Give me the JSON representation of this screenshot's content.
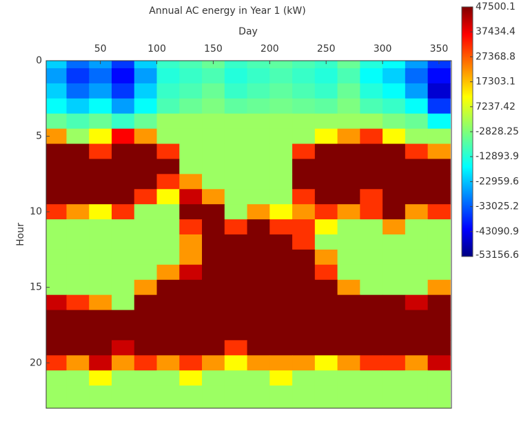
{
  "chart_data": {
    "type": "heatmap",
    "title": "Annual AC energy in Year 1 (kW)",
    "xlabel": "Day",
    "ylabel": "Hour",
    "cmap": "jet",
    "y_inverted": true,
    "x_axis_position": "top",
    "xlim": [
      2,
      361
    ],
    "xticks": [
      50,
      100,
      150,
      200,
      250,
      300,
      350
    ],
    "ylim": [
      0,
      23
    ],
    "yticks": [
      0,
      5,
      10,
      15,
      20
    ],
    "x": [
      10,
      30,
      50,
      70,
      90,
      110,
      130,
      150,
      170,
      190,
      210,
      230,
      250,
      270,
      290,
      310,
      330,
      350
    ],
    "y": [
      0,
      1,
      2,
      3,
      4,
      5,
      6,
      7,
      8,
      9,
      10,
      11,
      12,
      13,
      14,
      15,
      16,
      17,
      18,
      19,
      20,
      21,
      22,
      23
    ],
    "values": [
      [
        -20000,
        -30000,
        -25000,
        -35000,
        -20000,
        -10000,
        -8000,
        -5000,
        -10000,
        -8000,
        -6000,
        -8000,
        -10000,
        -5000,
        -12000,
        -15000,
        -25000,
        -35000
      ],
      [
        -25000,
        -35000,
        -30000,
        -40000,
        -25000,
        -12000,
        -10000,
        -8000,
        -12000,
        -10000,
        -8000,
        -10000,
        -12000,
        -8000,
        -15000,
        -20000,
        -30000,
        -40000
      ],
      [
        -20000,
        -30000,
        -25000,
        -35000,
        -20000,
        -10000,
        -8000,
        -5000,
        -10000,
        -8000,
        -6000,
        -8000,
        -10000,
        -5000,
        -12000,
        -15000,
        -25000,
        -45000
      ],
      [
        -15000,
        -20000,
        -15000,
        -25000,
        -15000,
        -8000,
        -5000,
        -3000,
        -6000,
        -5000,
        -4000,
        -5000,
        -6000,
        -3000,
        -8000,
        -10000,
        -15000,
        -35000
      ],
      [
        -5000,
        -8000,
        -5000,
        -10000,
        -5000,
        0,
        0,
        0,
        0,
        0,
        0,
        0,
        0,
        0,
        0,
        -3000,
        -5000,
        -15000
      ],
      [
        20000,
        0,
        10000,
        35000,
        20000,
        0,
        0,
        0,
        0,
        0,
        0,
        0,
        10000,
        20000,
        30000,
        10000,
        0,
        0
      ],
      [
        47500,
        47500,
        30000,
        47500,
        47500,
        30000,
        0,
        0,
        0,
        0,
        0,
        30000,
        47500,
        47500,
        47500,
        47500,
        30000,
        20000
      ],
      [
        47500,
        47500,
        47500,
        47500,
        47500,
        47500,
        0,
        0,
        0,
        0,
        0,
        47500,
        47500,
        47500,
        47500,
        47500,
        47500,
        47500
      ],
      [
        47500,
        47500,
        47500,
        47500,
        47500,
        30000,
        20000,
        0,
        0,
        0,
        0,
        47500,
        47500,
        47500,
        47500,
        47500,
        47500,
        47500
      ],
      [
        47500,
        47500,
        47500,
        47500,
        30000,
        10000,
        40000,
        20000,
        0,
        0,
        0,
        30000,
        47500,
        47500,
        30000,
        47500,
        47500,
        47500
      ],
      [
        30000,
        20000,
        10000,
        30000,
        0,
        0,
        47500,
        47500,
        0,
        20000,
        10000,
        20000,
        30000,
        20000,
        30000,
        47500,
        20000,
        30000
      ],
      [
        0,
        0,
        0,
        0,
        0,
        0,
        30000,
        47500,
        30000,
        47500,
        30000,
        30000,
        10000,
        0,
        0,
        20000,
        0,
        0
      ],
      [
        0,
        0,
        0,
        0,
        0,
        0,
        20000,
        47500,
        47500,
        47500,
        47500,
        30000,
        0,
        0,
        0,
        0,
        0,
        0
      ],
      [
        0,
        0,
        0,
        0,
        0,
        0,
        20000,
        47500,
        47500,
        47500,
        47500,
        47500,
        20000,
        0,
        0,
        0,
        0,
        0
      ],
      [
        0,
        0,
        0,
        0,
        0,
        20000,
        40000,
        47500,
        47500,
        47500,
        47500,
        47500,
        30000,
        0,
        0,
        0,
        0,
        0
      ],
      [
        0,
        0,
        0,
        0,
        20000,
        47500,
        47500,
        47500,
        47500,
        47500,
        47500,
        47500,
        47500,
        20000,
        0,
        0,
        0,
        20000
      ],
      [
        40000,
        30000,
        20000,
        0,
        47500,
        47500,
        47500,
        47500,
        47500,
        47500,
        47500,
        47500,
        47500,
        47500,
        47500,
        47500,
        40000,
        47500
      ],
      [
        47500,
        47500,
        47500,
        47500,
        47500,
        47500,
        47500,
        47500,
        47500,
        47500,
        47500,
        47500,
        47500,
        47500,
        47500,
        47500,
        47500,
        47500
      ],
      [
        47500,
        47500,
        47500,
        47500,
        47500,
        47500,
        47500,
        47500,
        47500,
        47500,
        47500,
        47500,
        47500,
        47500,
        47500,
        47500,
        47500,
        47500
      ],
      [
        47500,
        47500,
        47500,
        40000,
        47500,
        47500,
        47500,
        47500,
        30000,
        47500,
        47500,
        47500,
        47500,
        47500,
        47500,
        47500,
        47500,
        47500
      ],
      [
        30000,
        20000,
        40000,
        20000,
        30000,
        20000,
        30000,
        20000,
        10000,
        20000,
        20000,
        20000,
        10000,
        20000,
        30000,
        30000,
        20000,
        40000
      ],
      [
        0,
        0,
        10000,
        0,
        0,
        0,
        10000,
        0,
        0,
        0,
        10000,
        0,
        0,
        0,
        0,
        0,
        0,
        0
      ],
      [
        0,
        0,
        0,
        0,
        0,
        0,
        0,
        0,
        0,
        0,
        0,
        0,
        0,
        0,
        0,
        0,
        0,
        0
      ],
      [
        0,
        0,
        0,
        0,
        0,
        0,
        0,
        0,
        0,
        0,
        0,
        0,
        0,
        0,
        0,
        0,
        0,
        0
      ]
    ],
    "colorbar": {
      "lim": [
        -53156.6,
        47500.1
      ],
      "ticks": [
        47500.1,
        37434.4,
        27368.8,
        17303.1,
        7237.42,
        -2828.25,
        -12893.9,
        -22959.6,
        -33025.2,
        -43090.9,
        -53156.6
      ]
    }
  }
}
